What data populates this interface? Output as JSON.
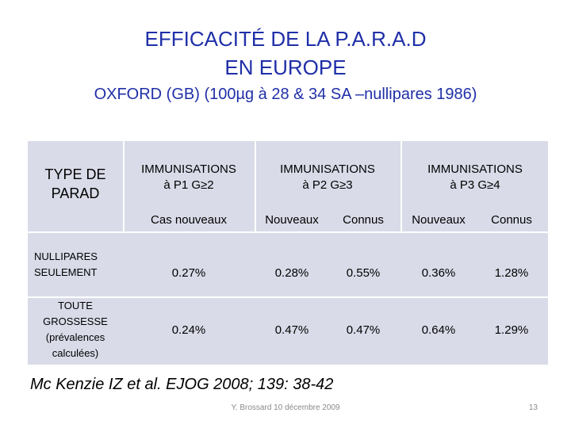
{
  "title_line1": "EFFICACITÉ DE LA P.A.R.A.D",
  "title_line2": "EN EUROPE",
  "subtitle": "OXFORD (GB) (100µg à 28 & 34 SA –nullipares 1986)",
  "table": {
    "type_header": "TYPE DE PARAD",
    "col_headers": [
      {
        "line1": "IMMUNISATIONS",
        "line2": "à P1 G≥2"
      },
      {
        "line1": "IMMUNISATIONS",
        "line2": "à P2 G≥3"
      },
      {
        "line1": "IMMUNISATIONS",
        "line2": "à P3 G≥4"
      }
    ],
    "sub_headers": [
      "Cas nouveaux",
      "Nouveaux",
      "Connus",
      "Nouveaux",
      "Connus"
    ],
    "rows": [
      {
        "label_lines": [
          "NULLIPARES",
          "SEULEMENT"
        ],
        "values": [
          "0.27%",
          "0.28%",
          "0.55%",
          "0.36%",
          "1.28%"
        ]
      },
      {
        "label_lines": [
          "TOUTE",
          "GROSSESSE",
          "(prévalences",
          "calculées)"
        ],
        "values": [
          "0.24%",
          "0.47%",
          "0.47%",
          "0.64%",
          "1.29%"
        ]
      }
    ]
  },
  "citation": "Mc Kenzie IZ et al. EJOG 2008; 139: 38-42",
  "footer": "Y. Brossard 10 décembre 2009",
  "page_number": "13"
}
